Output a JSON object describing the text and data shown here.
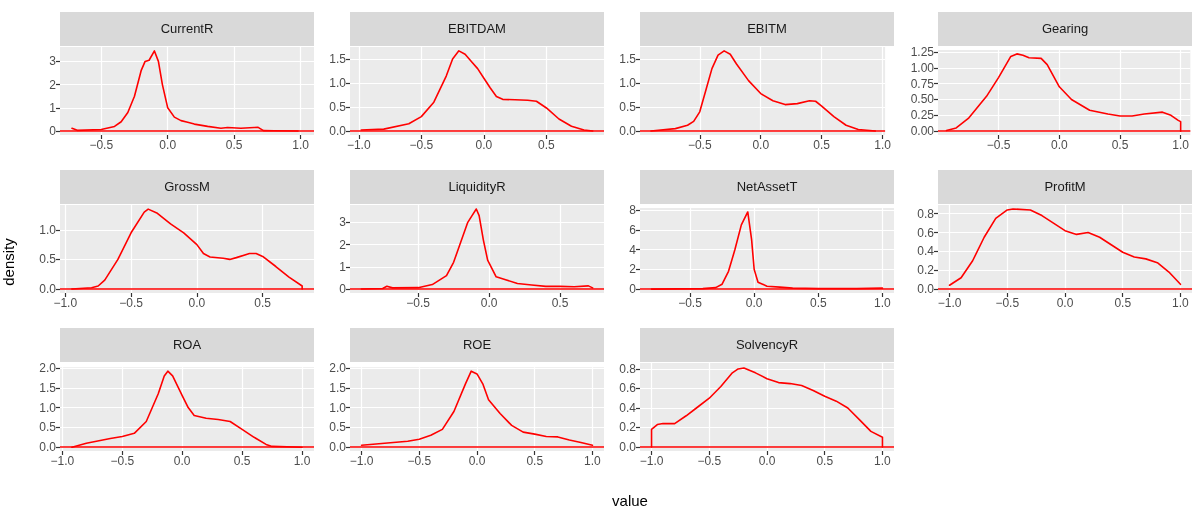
{
  "chart_data": [
    {
      "type": "line",
      "title": "CurrentR",
      "grid": true,
      "xlim": [
        -0.81,
        1.1
      ],
      "ylim": [
        -0.17,
        3.62
      ],
      "xticks": [
        {
          "value": -0.5,
          "label": "−0.5"
        },
        {
          "value": 0,
          "label": "0.0"
        },
        {
          "value": 0.5,
          "label": "0.5"
        },
        {
          "value": 1,
          "label": "1.0"
        }
      ],
      "yticks": [
        0,
        1,
        2,
        3
      ],
      "ref_lines": [
        {
          "axis": "y",
          "value": 0,
          "color": "#ff0000"
        }
      ],
      "series": [
        {
          "color": "#ff0000",
          "x": [
            -0.72,
            -0.68,
            -0.5,
            -0.4,
            -0.35,
            -0.3,
            -0.25,
            -0.2,
            -0.17,
            -0.14,
            -0.1,
            -0.07,
            -0.04,
            0,
            0.05,
            0.1,
            0.15,
            0.2,
            0.3,
            0.4,
            0.45,
            0.55,
            0.65,
            0.68,
            0.72,
            0.8,
            0.98
          ],
          "values": [
            0.12,
            0.03,
            0.07,
            0.2,
            0.4,
            0.8,
            1.5,
            2.6,
            3.0,
            3.05,
            3.45,
            3.0,
            2.0,
            1.0,
            0.6,
            0.45,
            0.38,
            0.3,
            0.2,
            0.12,
            0.15,
            0.12,
            0.15,
            0.16,
            0.02,
            0.01,
            0
          ]
        }
      ]
    },
    {
      "type": "line",
      "title": "EBITDAM",
      "grid": true,
      "xlim": [
        -1.07,
        0.96
      ],
      "ylim": [
        -0.083,
        1.75
      ],
      "xticks": [
        {
          "value": -1,
          "label": "−1.0"
        },
        {
          "value": -0.5,
          "label": "−0.5"
        },
        {
          "value": 0,
          "label": "0.0"
        },
        {
          "value": 0.5,
          "label": "0.5"
        }
      ],
      "yticks": [
        {
          "value": 0,
          "label": "0.0"
        },
        {
          "value": 0.5,
          "label": "0.5"
        },
        {
          "value": 1,
          "label": "1.0"
        },
        {
          "value": 1.5,
          "label": "1.5"
        }
      ],
      "ref_lines": [
        {
          "axis": "y",
          "value": 0,
          "color": "#ff0000"
        }
      ],
      "series": [
        {
          "color": "#ff0000",
          "x": [
            -0.98,
            -0.8,
            -0.6,
            -0.5,
            -0.4,
            -0.3,
            -0.25,
            -0.2,
            -0.15,
            -0.1,
            -0.05,
            0,
            0.05,
            0.1,
            0.15,
            0.25,
            0.35,
            0.42,
            0.5,
            0.6,
            0.7,
            0.8,
            0.87
          ],
          "values": [
            0.02,
            0.04,
            0.15,
            0.3,
            0.6,
            1.15,
            1.5,
            1.67,
            1.6,
            1.45,
            1.3,
            1.1,
            0.9,
            0.72,
            0.66,
            0.65,
            0.64,
            0.62,
            0.48,
            0.25,
            0.1,
            0.02,
            0
          ]
        }
      ]
    },
    {
      "type": "line",
      "title": "EBITM",
      "grid": true,
      "xlim": [
        -0.99,
        1.02
      ],
      "ylim": [
        -0.083,
        1.75
      ],
      "xticks": [
        {
          "value": -0.5,
          "label": "−0.5"
        },
        {
          "value": 0,
          "label": "0.0"
        },
        {
          "value": 0.5,
          "label": "0.5"
        },
        {
          "value": 1,
          "label": "1.0"
        }
      ],
      "yticks": [
        {
          "value": 0,
          "label": "0.0"
        },
        {
          "value": 0.5,
          "label": "0.5"
        },
        {
          "value": 1,
          "label": "1.0"
        },
        {
          "value": 1.5,
          "label": "1.5"
        }
      ],
      "ref_lines": [
        {
          "axis": "y",
          "value": 0,
          "color": "#ff0000"
        }
      ],
      "series": [
        {
          "color": "#ff0000",
          "x": [
            -0.9,
            -0.7,
            -0.6,
            -0.55,
            -0.5,
            -0.45,
            -0.4,
            -0.35,
            -0.3,
            -0.25,
            -0.2,
            -0.1,
            0,
            0.1,
            0.2,
            0.3,
            0.4,
            0.45,
            0.5,
            0.6,
            0.7,
            0.8,
            0.94
          ],
          "values": [
            0,
            0.05,
            0.12,
            0.2,
            0.4,
            0.85,
            1.3,
            1.58,
            1.67,
            1.6,
            1.4,
            1.05,
            0.78,
            0.63,
            0.55,
            0.57,
            0.63,
            0.62,
            0.52,
            0.3,
            0.12,
            0.03,
            0
          ]
        }
      ]
    },
    {
      "type": "line",
      "title": "Gearing",
      "grid": true,
      "xlim": [
        -1.0,
        1.08
      ],
      "ylim": [
        -0.061,
        1.28
      ],
      "xticks": [
        {
          "value": -0.5,
          "label": "−0.5"
        },
        {
          "value": 0,
          "label": "0.0"
        },
        {
          "value": 0.5,
          "label": "0.5"
        },
        {
          "value": 1,
          "label": "1.0"
        }
      ],
      "yticks": [
        {
          "value": 0,
          "label": "0.00"
        },
        {
          "value": 0.25,
          "label": "0.25"
        },
        {
          "value": 0.5,
          "label": "0.50"
        },
        {
          "value": 0.75,
          "label": "0.75"
        },
        {
          "value": 1,
          "label": "1.00"
        },
        {
          "value": 1.25,
          "label": "1.25"
        }
      ],
      "ref_lines": [
        {
          "axis": "y",
          "value": 0,
          "color": "#ff0000"
        }
      ],
      "series": [
        {
          "color": "#ff0000",
          "x": [
            -0.93,
            -0.85,
            -0.75,
            -0.6,
            -0.5,
            -0.4,
            -0.35,
            -0.3,
            -0.25,
            -0.15,
            -0.1,
            0,
            0.1,
            0.25,
            0.4,
            0.5,
            0.6,
            0.7,
            0.85,
            0.92,
            0.98,
            1.0,
            1.0
          ],
          "values": [
            0.01,
            0.05,
            0.2,
            0.55,
            0.85,
            1.18,
            1.22,
            1.2,
            1.16,
            1.15,
            1.05,
            0.7,
            0.5,
            0.33,
            0.27,
            0.24,
            0.24,
            0.27,
            0.3,
            0.25,
            0.17,
            0.15,
            0
          ]
        }
      ]
    },
    {
      "type": "line",
      "title": "GrossM",
      "ylabel": "density",
      "grid": true,
      "xlim": [
        -1.04,
        0.89
      ],
      "ylim": [
        -0.068,
        1.42
      ],
      "xticks": [
        {
          "value": -1,
          "label": "−1.0"
        },
        {
          "value": -0.5,
          "label": "−0.5"
        },
        {
          "value": 0,
          "label": "0.0"
        },
        {
          "value": 0.5,
          "label": "0.5"
        }
      ],
      "yticks": [
        {
          "value": 0,
          "label": "0.0"
        },
        {
          "value": 0.5,
          "label": "0.5"
        },
        {
          "value": 1,
          "label": "1.0"
        }
      ],
      "ref_lines": [
        {
          "axis": "y",
          "value": 0,
          "color": "#ff0000"
        }
      ],
      "series": [
        {
          "color": "#ff0000",
          "x": [
            -0.95,
            -0.8,
            -0.75,
            -0.7,
            -0.6,
            -0.5,
            -0.4,
            -0.37,
            -0.3,
            -0.2,
            -0.1,
            0,
            0.05,
            0.1,
            0.2,
            0.25,
            0.3,
            0.4,
            0.45,
            0.5,
            0.6,
            0.7,
            0.8,
            0.8
          ],
          "values": [
            0,
            0.02,
            0.05,
            0.15,
            0.5,
            0.95,
            1.3,
            1.35,
            1.28,
            1.1,
            0.95,
            0.75,
            0.6,
            0.54,
            0.52,
            0.5,
            0.53,
            0.6,
            0.6,
            0.55,
            0.38,
            0.2,
            0.05,
            0
          ]
        }
      ]
    },
    {
      "type": "line",
      "title": "LiquidityR",
      "grid": true,
      "xlim": [
        -0.98,
        0.81
      ],
      "ylim": [
        -0.18,
        3.78
      ],
      "xticks": [
        {
          "value": -0.5,
          "label": "−0.5"
        },
        {
          "value": 0,
          "label": "0.0"
        },
        {
          "value": 0.5,
          "label": "0.5"
        }
      ],
      "yticks": [
        0,
        1,
        2,
        3
      ],
      "ref_lines": [
        {
          "axis": "y",
          "value": 0,
          "color": "#ff0000"
        }
      ],
      "series": [
        {
          "color": "#ff0000",
          "x": [
            -0.9,
            -0.75,
            -0.72,
            -0.68,
            -0.5,
            -0.4,
            -0.3,
            -0.25,
            -0.2,
            -0.15,
            -0.12,
            -0.09,
            -0.07,
            -0.04,
            -0.01,
            0.05,
            0.1,
            0.2,
            0.3,
            0.4,
            0.5,
            0.6,
            0.7,
            0.73
          ],
          "values": [
            0,
            0.02,
            0.12,
            0.05,
            0.06,
            0.2,
            0.6,
            1.2,
            2.1,
            3.0,
            3.3,
            3.6,
            3.3,
            2.2,
            1.3,
            0.55,
            0.45,
            0.25,
            0.18,
            0.12,
            0.12,
            0.1,
            0.14,
            0.05
          ]
        }
      ]
    },
    {
      "type": "line",
      "title": "NetAssetT",
      "grid": true,
      "xlim": [
        -0.89,
        1.09
      ],
      "ylim": [
        -0.39,
        8.19
      ],
      "xticks": [
        {
          "value": -0.5,
          "label": "−0.5"
        },
        {
          "value": 0,
          "label": "0.0"
        },
        {
          "value": 0.5,
          "label": "0.5"
        },
        {
          "value": 1,
          "label": "1.0"
        }
      ],
      "yticks": [
        0,
        2,
        4,
        6,
        8
      ],
      "ref_lines": [
        {
          "axis": "y",
          "value": 0,
          "color": "#ff0000"
        }
      ],
      "series": [
        {
          "color": "#ff0000",
          "x": [
            -0.8,
            -0.4,
            -0.3,
            -0.25,
            -0.2,
            -0.15,
            -0.1,
            -0.05,
            -0.02,
            0,
            0.03,
            0.1,
            0.2,
            0.3,
            0.5,
            0.8,
            1.0
          ],
          "values": [
            0,
            0.05,
            0.15,
            0.5,
            1.8,
            4.0,
            6.5,
            7.8,
            5.0,
            2.0,
            0.7,
            0.3,
            0.2,
            0.1,
            0.05,
            0.05,
            0.1
          ]
        }
      ]
    },
    {
      "type": "line",
      "title": "ProfitM",
      "grid": true,
      "xlim": [
        -1.1,
        1.1
      ],
      "ylim": [
        -0.0425,
        0.8925
      ],
      "xticks": [
        {
          "value": -1,
          "label": "−1.0"
        },
        {
          "value": -0.5,
          "label": "−0.5"
        },
        {
          "value": 0,
          "label": "0.0"
        },
        {
          "value": 0.5,
          "label": "0.5"
        },
        {
          "value": 1,
          "label": "1.0"
        }
      ],
      "yticks": [
        {
          "value": 0,
          "label": "0.0"
        },
        {
          "value": 0.2,
          "label": "0.2"
        },
        {
          "value": 0.4,
          "label": "0.4"
        },
        {
          "value": 0.6,
          "label": "0.6"
        },
        {
          "value": 0.8,
          "label": "0.8"
        }
      ],
      "ref_lines": [
        {
          "axis": "y",
          "value": 0,
          "color": "#ff0000"
        }
      ],
      "series": [
        {
          "color": "#ff0000",
          "x": [
            -1,
            -0.9,
            -0.8,
            -0.7,
            -0.6,
            -0.5,
            -0.45,
            -0.3,
            -0.2,
            -0.1,
            0,
            0.1,
            0.2,
            0.3,
            0.4,
            0.5,
            0.6,
            0.7,
            0.8,
            0.9,
            1.0
          ],
          "values": [
            0.04,
            0.12,
            0.3,
            0.55,
            0.75,
            0.84,
            0.85,
            0.84,
            0.78,
            0.7,
            0.62,
            0.58,
            0.6,
            0.55,
            0.47,
            0.39,
            0.34,
            0.32,
            0.28,
            0.18,
            0.05
          ]
        }
      ]
    },
    {
      "type": "line",
      "title": "ROA",
      "grid": true,
      "xlim": [
        -1.02,
        1.1
      ],
      "ylim": [
        -0.096,
        2.02
      ],
      "xticks": [
        {
          "value": -1,
          "label": "−1.0"
        },
        {
          "value": -0.5,
          "label": "−0.5"
        },
        {
          "value": 0,
          "label": "0.0"
        },
        {
          "value": 0.5,
          "label": "0.5"
        },
        {
          "value": 1,
          "label": "1.0"
        }
      ],
      "yticks": [
        {
          "value": 0,
          "label": "0.0"
        },
        {
          "value": 0.5,
          "label": "0.5"
        },
        {
          "value": 1,
          "label": "1.0"
        },
        {
          "value": 1.5,
          "label": "1.5"
        },
        {
          "value": 2,
          "label": "2.0"
        }
      ],
      "ref_lines": [
        {
          "axis": "y",
          "value": 0,
          "color": "#ff0000"
        }
      ],
      "series": [
        {
          "color": "#ff0000",
          "x": [
            -0.92,
            -0.8,
            -0.6,
            -0.5,
            -0.4,
            -0.3,
            -0.2,
            -0.15,
            -0.12,
            -0.08,
            0,
            0.05,
            0.1,
            0.2,
            0.3,
            0.4,
            0.5,
            0.6,
            0.7,
            0.75,
            1.0
          ],
          "values": [
            0,
            0.1,
            0.22,
            0.27,
            0.35,
            0.65,
            1.35,
            1.8,
            1.92,
            1.8,
            1.3,
            1.0,
            0.8,
            0.73,
            0.7,
            0.65,
            0.45,
            0.25,
            0.07,
            0.02,
            0
          ]
        }
      ]
    },
    {
      "type": "line",
      "title": "ROE",
      "grid": true,
      "xlim": [
        -1.1,
        1.1
      ],
      "ylim": [
        -0.096,
        2.02
      ],
      "xticks": [
        {
          "value": -1,
          "label": "−1.0"
        },
        {
          "value": -0.5,
          "label": "−0.5"
        },
        {
          "value": 0,
          "label": "0.0"
        },
        {
          "value": 0.5,
          "label": "0.5"
        },
        {
          "value": 1,
          "label": "1.0"
        }
      ],
      "yticks": [
        {
          "value": 0,
          "label": "0.0"
        },
        {
          "value": 0.5,
          "label": "0.5"
        },
        {
          "value": 1,
          "label": "1.0"
        },
        {
          "value": 1.5,
          "label": "1.5"
        },
        {
          "value": 2,
          "label": "2.0"
        }
      ],
      "ref_lines": [
        {
          "axis": "y",
          "value": 0,
          "color": "#ff0000"
        }
      ],
      "series": [
        {
          "color": "#ff0000",
          "x": [
            -1,
            -0.8,
            -0.6,
            -0.5,
            -0.4,
            -0.3,
            -0.2,
            -0.1,
            -0.05,
            0,
            0.05,
            0.1,
            0.2,
            0.3,
            0.4,
            0.5,
            0.6,
            0.7,
            0.8,
            0.9,
            1.0
          ],
          "values": [
            0.05,
            0.1,
            0.15,
            0.2,
            0.3,
            0.45,
            0.9,
            1.6,
            1.92,
            1.85,
            1.6,
            1.2,
            0.85,
            0.55,
            0.38,
            0.33,
            0.27,
            0.26,
            0.18,
            0.12,
            0.05
          ]
        }
      ]
    },
    {
      "type": "line",
      "title": "SolvencyR",
      "xlabel": "value",
      "grid": true,
      "xlim": [
        -1.1,
        1.1
      ],
      "ylim": [
        -0.041,
        0.861
      ],
      "xticks": [
        {
          "value": -1,
          "label": "−1.0"
        },
        {
          "value": -0.5,
          "label": "−0.5"
        },
        {
          "value": 0,
          "label": "0.0"
        },
        {
          "value": 0.5,
          "label": "0.5"
        },
        {
          "value": 1,
          "label": "1.0"
        }
      ],
      "yticks": [
        {
          "value": 0,
          "label": "0.0"
        },
        {
          "value": 0.2,
          "label": "0.2"
        },
        {
          "value": 0.4,
          "label": "0.4"
        },
        {
          "value": 0.6,
          "label": "0.6"
        },
        {
          "value": 0.8,
          "label": "0.8"
        }
      ],
      "ref_lines": [
        {
          "axis": "y",
          "value": 0,
          "color": "#ff0000"
        }
      ],
      "series": [
        {
          "color": "#ff0000",
          "x": [
            -1,
            -1,
            -0.95,
            -0.9,
            -0.8,
            -0.7,
            -0.6,
            -0.5,
            -0.4,
            -0.3,
            -0.25,
            -0.2,
            -0.1,
            0,
            0.1,
            0.2,
            0.3,
            0.4,
            0.5,
            0.6,
            0.7,
            0.8,
            0.9,
            1.0,
            1.0
          ],
          "values": [
            0,
            0.18,
            0.23,
            0.24,
            0.24,
            0.32,
            0.41,
            0.5,
            0.62,
            0.76,
            0.8,
            0.81,
            0.76,
            0.7,
            0.66,
            0.65,
            0.63,
            0.58,
            0.52,
            0.47,
            0.4,
            0.28,
            0.16,
            0.1,
            0
          ]
        }
      ]
    }
  ]
}
